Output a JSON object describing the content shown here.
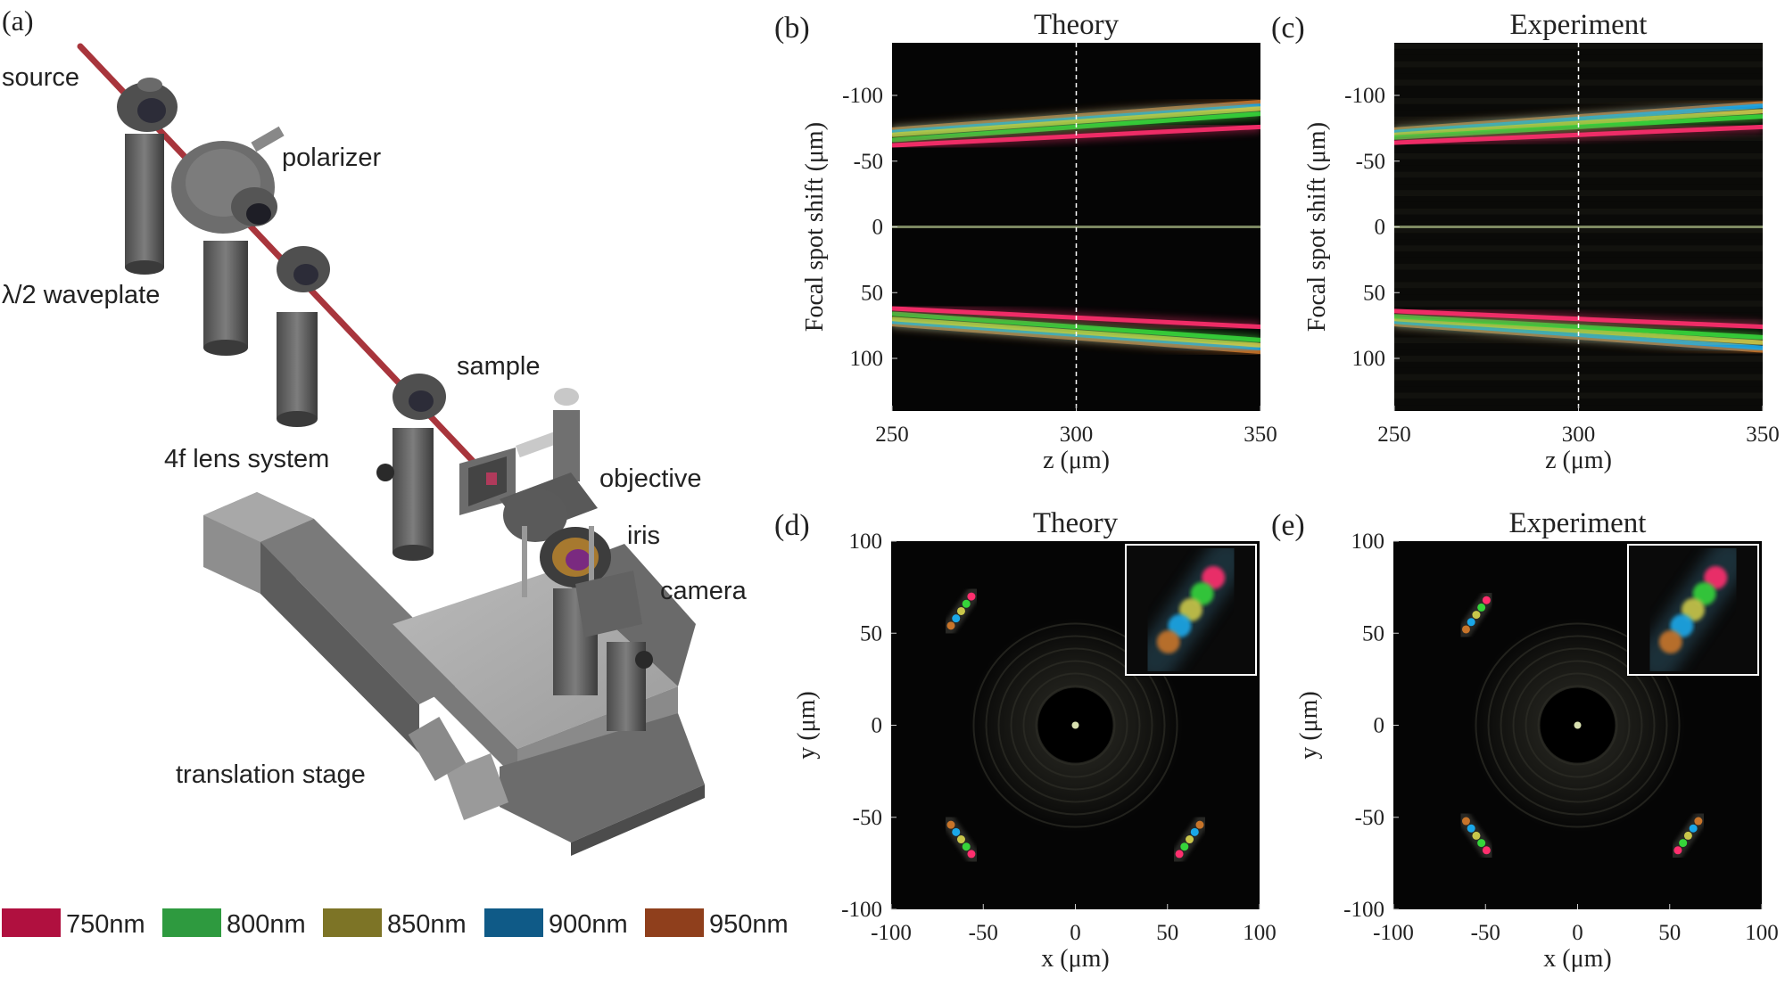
{
  "panels": {
    "a": {
      "letter": "(a)",
      "labels": {
        "source": "source",
        "polarizer": "polarizer",
        "waveplate": "λ/2 waveplate",
        "sample": "sample",
        "lens": "4f lens system",
        "objective": "objective",
        "iris": "iris",
        "camera": "camera",
        "stage": "translation stage"
      }
    },
    "b": {
      "letter": "(b)",
      "title": "Theory"
    },
    "c": {
      "letter": "(c)",
      "title": "Experiment"
    },
    "d": {
      "letter": "(d)",
      "title": "Theory"
    },
    "e": {
      "letter": "(e)",
      "title": "Experiment"
    }
  },
  "legend": [
    {
      "label": "750nm",
      "color": "#b0103f"
    },
    {
      "label": "800nm",
      "color": "#2e9a3f"
    },
    {
      "label": "850nm",
      "color": "#7d7426"
    },
    {
      "label": "900nm",
      "color": "#0f5a87"
    },
    {
      "label": "950nm",
      "color": "#8f3f1c"
    }
  ],
  "chart_data": [
    {
      "panel": "b",
      "type": "heatmap",
      "title": "Theory",
      "xlabel": "z (μm)",
      "ylabel": "Focal spot shift (μm)",
      "xlim": [
        250,
        350
      ],
      "ylim": [
        -140,
        140
      ],
      "x_ticks": [
        250,
        300,
        350
      ],
      "y_ticks": [
        -100,
        -50,
        0,
        50,
        100
      ],
      "marker_line_z": 300,
      "beams": [
        {
          "wavelength": "750nm",
          "shift_at_250": -62,
          "shift_at_350": -76,
          "mirror": true
        },
        {
          "wavelength": "800nm",
          "shift_at_250": -66,
          "shift_at_350": -86,
          "mirror": true
        },
        {
          "wavelength": "850nm",
          "shift_at_250": -70,
          "shift_at_350": -90,
          "mirror": true
        },
        {
          "wavelength": "900nm",
          "shift_at_250": -72,
          "shift_at_350": -92,
          "mirror": true
        },
        {
          "wavelength": "950nm",
          "shift_at_250": -74,
          "shift_at_350": -95,
          "mirror": true
        }
      ]
    },
    {
      "panel": "c",
      "type": "heatmap",
      "title": "Experiment",
      "xlabel": "z (μm)",
      "ylabel": "Focal spot shift (μm)",
      "xlim": [
        250,
        350
      ],
      "ylim": [
        -140,
        140
      ],
      "x_ticks": [
        250,
        300,
        350
      ],
      "y_ticks": [
        -100,
        -50,
        0,
        50,
        100
      ],
      "marker_line_z": 300,
      "beams": [
        {
          "wavelength": "750nm",
          "shift_at_250": -64,
          "shift_at_350": -76,
          "mirror": true
        },
        {
          "wavelength": "800nm",
          "shift_at_250": -68,
          "shift_at_350": -84,
          "mirror": true
        },
        {
          "wavelength": "850nm",
          "shift_at_250": -70,
          "shift_at_350": -88,
          "mirror": true
        },
        {
          "wavelength": "900nm",
          "shift_at_250": -72,
          "shift_at_350": -92,
          "mirror": true
        },
        {
          "wavelength": "950nm",
          "shift_at_250": -74,
          "shift_at_350": -94,
          "mirror": true
        }
      ]
    },
    {
      "panel": "d",
      "type": "heatmap",
      "title": "Theory",
      "xlabel": "x (μm)",
      "ylabel": "y (μm)",
      "xlim": [
        -100,
        100
      ],
      "ylim": [
        -100,
        100
      ],
      "x_ticks": [
        -100,
        -50,
        0,
        50,
        100
      ],
      "y_ticks": [
        100,
        50,
        0,
        -50,
        -100
      ],
      "spots": [
        {
          "cx": -62,
          "cy": 62,
          "angle_deg": -55
        },
        {
          "cx": -62,
          "cy": -62,
          "angle_deg": 55
        },
        {
          "cx": 62,
          "cy": -62,
          "angle_deg": 125
        }
      ]
    },
    {
      "panel": "e",
      "type": "heatmap",
      "title": "Experiment",
      "xlabel": "x (μm)",
      "ylabel": "y (μm)",
      "xlim": [
        -100,
        100
      ],
      "ylim": [
        -100,
        100
      ],
      "x_ticks": [
        -100,
        -50,
        0,
        50,
        100
      ],
      "y_ticks": [
        100,
        50,
        0,
        -50,
        -100
      ],
      "spots": [
        {
          "cx": -55,
          "cy": 60,
          "angle_deg": -55
        },
        {
          "cx": -55,
          "cy": -60,
          "angle_deg": 55
        },
        {
          "cx": 60,
          "cy": -60,
          "angle_deg": 125
        }
      ]
    }
  ]
}
